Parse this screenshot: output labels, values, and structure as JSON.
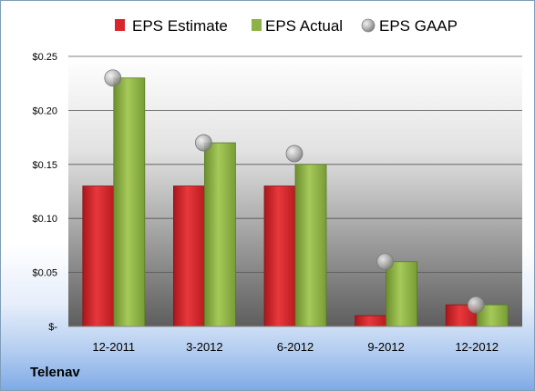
{
  "company": "Telenav",
  "colors": {
    "estimate": "#d9262b",
    "actual": "#8db345",
    "gaap": "#a8a8a8"
  },
  "chart_data": {
    "type": "bar",
    "categories": [
      "12-2011",
      "3-2012",
      "6-2012",
      "9-2012",
      "12-2012"
    ],
    "series": [
      {
        "name": "EPS Estimate",
        "type": "bar",
        "values": [
          0.13,
          0.13,
          0.13,
          0.01,
          0.02
        ]
      },
      {
        "name": "EPS Actual",
        "type": "bar",
        "values": [
          0.23,
          0.17,
          0.15,
          0.06,
          0.02
        ]
      },
      {
        "name": "EPS GAAP",
        "type": "scatter",
        "values": [
          0.23,
          0.17,
          0.16,
          0.06,
          0.02
        ]
      }
    ],
    "yticks": [
      0,
      0.05,
      0.1,
      0.15,
      0.2,
      0.25
    ],
    "ytick_labels": [
      "$-",
      "$0.05",
      "$0.10",
      "$0.15",
      "$0.20",
      "$0.25"
    ],
    "ylim": [
      0,
      0.25
    ],
    "legend_position": "top",
    "grid": true
  }
}
